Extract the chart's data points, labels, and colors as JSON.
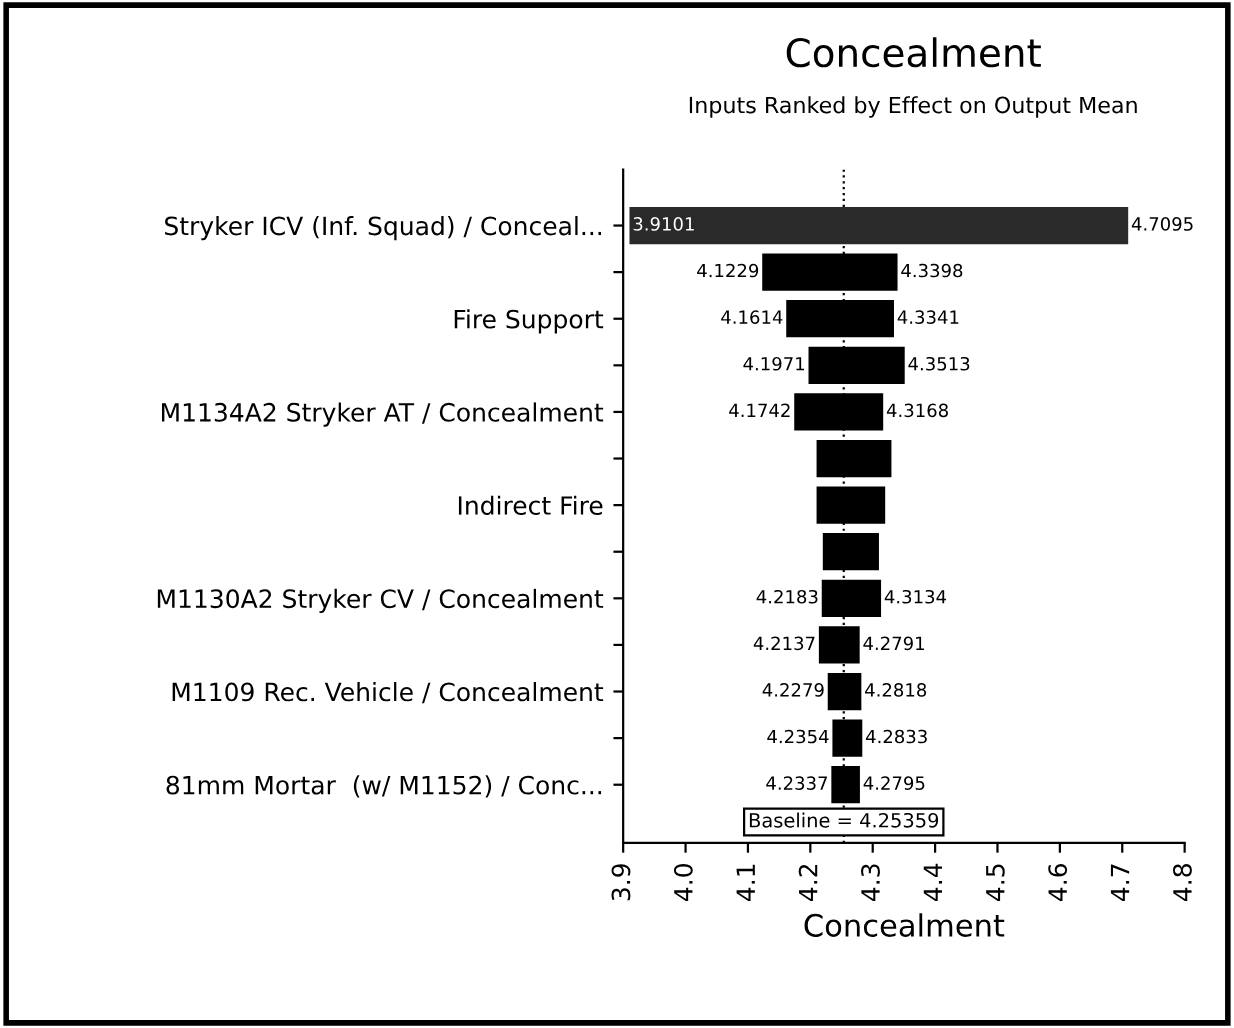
{
  "chart_data": {
    "type": "bar",
    "orientation": "horizontal",
    "title": "Concealment",
    "subtitle": "Inputs Ranked by Effect on Output Mean",
    "xlabel": "Concealment",
    "categories": [
      "Stryker ICV (Inf. Squad) / Conceal...",
      null,
      "Fire Support",
      null,
      "M1134A2 Stryker AT / Concealment",
      null,
      "Indirect Fire",
      null,
      "M1130A2 Stryker CV / Concealment",
      null,
      "M1109 Rec. Vehicle / Concealment",
      null,
      "81mm Mortar  (w/ M1152) / Conc..."
    ],
    "base": [
      3.9101,
      4.1229,
      4.1614,
      4.1971,
      4.1742,
      4.21,
      4.21,
      4.22,
      4.2183,
      4.2137,
      4.2279,
      4.2354,
      4.2337
    ],
    "values": [
      0.7994,
      0.2169,
      0.1727,
      0.1542,
      0.1426,
      0.12,
      0.11,
      0.09,
      0.0951,
      0.0654,
      0.0539,
      0.0479,
      0.0458
    ],
    "colors": [
      "#2a2a2a",
      "#000000",
      "#000000",
      "#000000",
      "#000000",
      "#000000",
      "#000000",
      "#000000",
      "#000000",
      "#000000",
      "#000000",
      "#000000",
      "#000000"
    ],
    "annotations": [
      {
        "text": "3.9101",
        "x": 3.9101
      },
      {
        "text": "4.7095",
        "x": 4.7095
      },
      {
        "text": "4.1229",
        "x": 4.1229
      },
      {
        "text": "4.3398",
        "x": 4.3398
      },
      {
        "text": "4.1614",
        "x": 4.1614
      },
      {
        "text": "4.3341",
        "x": 4.3341
      },
      {
        "text": "4.1971",
        "x": 4.1971
      },
      {
        "text": "4.3513",
        "x": 4.3513
      },
      {
        "text": "4.1742",
        "x": 4.1742
      },
      {
        "text": "4.3168",
        "x": 4.3168
      },
      {
        "text": "4.2183",
        "x": 4.2183
      },
      {
        "text": "4.3134",
        "x": 4.3134
      },
      {
        "text": "4.2137",
        "x": 4.2137
      },
      {
        "text": "4.2791",
        "x": 4.2791
      },
      {
        "text": "4.2279",
        "x": 4.2279
      },
      {
        "text": "4.2818",
        "x": 4.2818
      },
      {
        "text": "4.2354",
        "x": 4.2354
      },
      {
        "text": "4.2833",
        "x": 4.2833
      },
      {
        "text": "4.2337",
        "x": 4.2337
      },
      {
        "text": "4.2795",
        "x": 4.2795
      }
    ],
    "xlim": [
      3.9,
      4.8
    ],
    "xticks": [
      {
        "value": 3.9,
        "label": "3.9"
      },
      {
        "value": 4.0,
        "label": "4.0"
      },
      {
        "value": 4.1,
        "label": "4.1"
      },
      {
        "value": 4.2,
        "label": "4.2"
      },
      {
        "value": 4.3,
        "label": "4.3"
      },
      {
        "value": 4.4,
        "label": "4.4"
      },
      {
        "value": 4.5,
        "label": "4.5"
      },
      {
        "value": 4.6,
        "label": "4.6"
      },
      {
        "value": 4.7,
        "label": "4.7"
      },
      {
        "value": 4.8,
        "label": "4.8"
      }
    ],
    "ref_lines": [
      {
        "axis": "x",
        "value": 4.25359,
        "label": "Baseline = 4.25359",
        "line_style": "dotted",
        "color": "#000000"
      }
    ],
    "grid": false,
    "legend": false
  }
}
